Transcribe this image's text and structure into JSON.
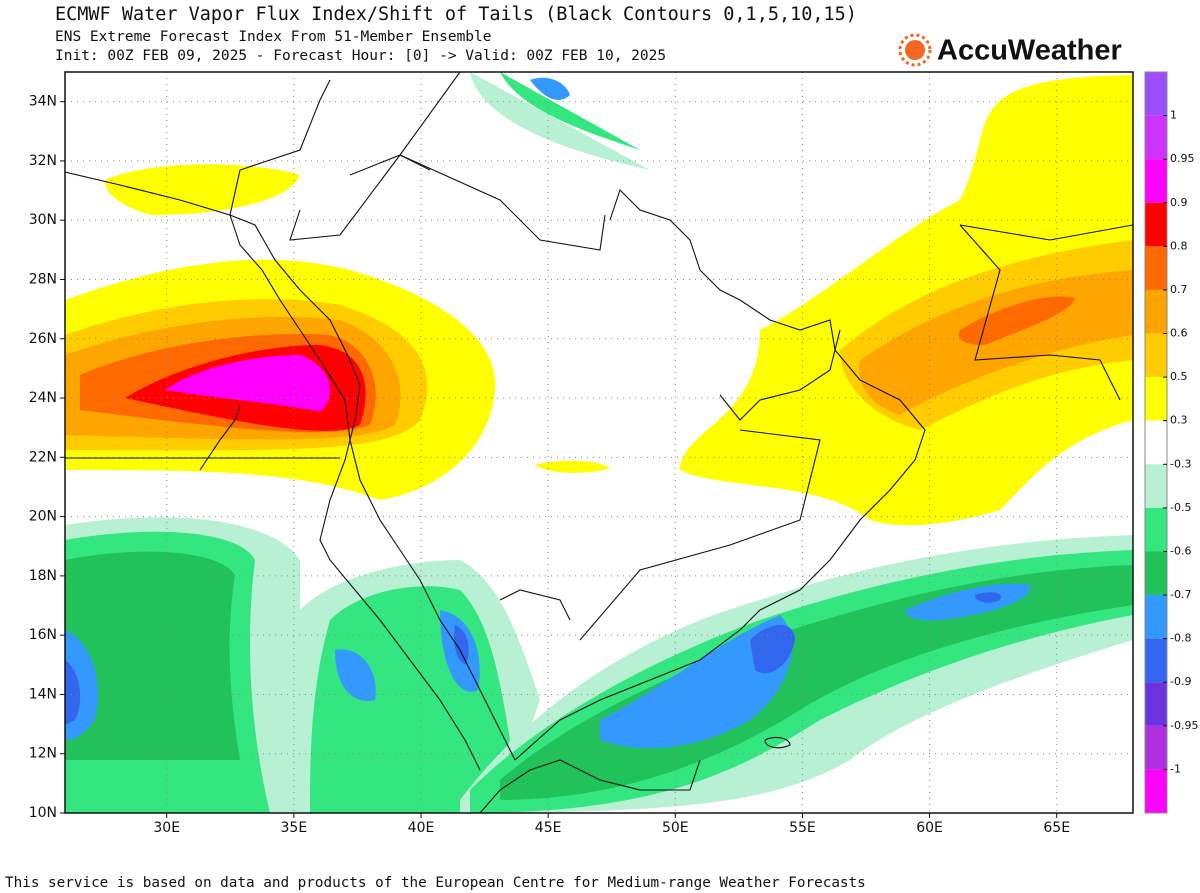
{
  "map": {
    "title": "ECMWF Water Vapor Flux Index/Shift of Tails (Black Contours 0,1,5,10,15)",
    "subtitle": "ENS Extreme Forecast Index From 51-Member Ensemble",
    "init_line": "Init: 00Z FEB 09, 2025 - Forecast Hour: [0] -> Valid: 00Z FEB 10, 2025",
    "logo": "AccuWeather",
    "xlim": [
      26,
      68
    ],
    "ylim": [
      10,
      35
    ],
    "xticks": [
      {
        "value": 30,
        "label": "30E"
      },
      {
        "value": 35,
        "label": "35E"
      },
      {
        "value": 40,
        "label": "40E"
      },
      {
        "value": 45,
        "label": "45E"
      },
      {
        "value": 50,
        "label": "50E"
      },
      {
        "value": 55,
        "label": "55E"
      },
      {
        "value": 60,
        "label": "60E"
      },
      {
        "value": 65,
        "label": "65E"
      }
    ],
    "yticks": [
      {
        "value": 10,
        "label": "10N"
      },
      {
        "value": 12,
        "label": "12N"
      },
      {
        "value": 14,
        "label": "14N"
      },
      {
        "value": 16,
        "label": "16N"
      },
      {
        "value": 18,
        "label": "18N"
      },
      {
        "value": 20,
        "label": "20N"
      },
      {
        "value": 22,
        "label": "22N"
      },
      {
        "value": 24,
        "label": "24N"
      },
      {
        "value": 26,
        "label": "26N"
      },
      {
        "value": 28,
        "label": "28N"
      },
      {
        "value": 30,
        "label": "30N"
      },
      {
        "value": 32,
        "label": "32N"
      },
      {
        "value": 34,
        "label": "34N"
      }
    ],
    "grid": true,
    "colorbar": {
      "levels": [
        1,
        0.95,
        0.9,
        0.8,
        0.7,
        0.6,
        0.5,
        0.3,
        -0.3,
        -0.5,
        -0.6,
        -0.7,
        -0.8,
        -0.9,
        -0.95,
        -1
      ],
      "colors": [
        "#9b4dff",
        "#cc33ff",
        "#ff00ff",
        "#ff0000",
        "#ff6a00",
        "#ffa500",
        "#ffcc00",
        "#ffff00",
        "#ffffff",
        "#b8f0d4",
        "#33e680",
        "#22c25a",
        "#3399ff",
        "#3366ee",
        "#6a33dd",
        "#b030e0",
        "#ff00ff"
      ]
    },
    "footer": "This service is based on data and products of the European Centre for Medium-range Weather Forecasts"
  }
}
